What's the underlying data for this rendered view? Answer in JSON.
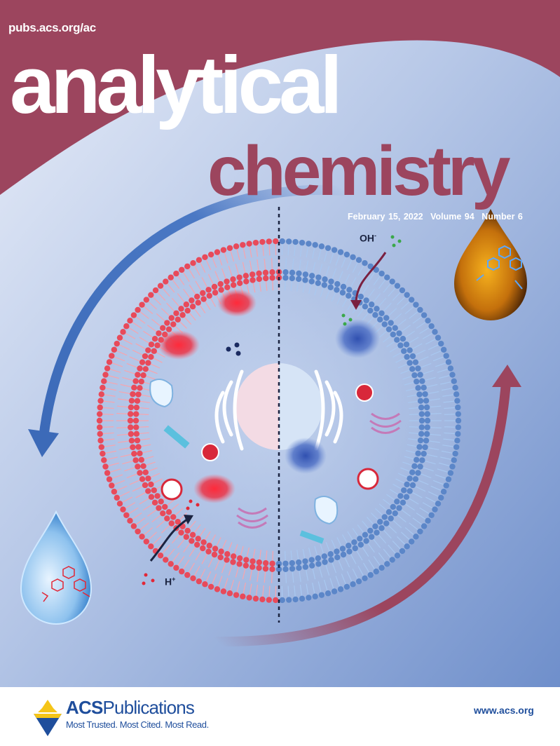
{
  "cover": {
    "journal_url": "pubs.acs.org/ac",
    "title_line1": "analytical",
    "title_line2": "chemistry",
    "issue": {
      "date": "February 15, 2022",
      "volume": "Volume 94",
      "number": "Number 6"
    },
    "art_labels": {
      "hydroxide": "OH",
      "hydroxide_charge": "-",
      "proton": "H",
      "proton_charge": "+"
    },
    "colors": {
      "brand": "#9c455e",
      "background": "#b3c5e6",
      "red_membrane": "#e84a5a",
      "blue_membrane": "#5b86c8"
    }
  },
  "footer": {
    "publisher_bold": "ACS",
    "publisher_rest": "Publications",
    "tagline": "Most Trusted. Most Cited. Most Read.",
    "website": "www.acs.org",
    "logo_icon": "acs-eagle-logo"
  }
}
